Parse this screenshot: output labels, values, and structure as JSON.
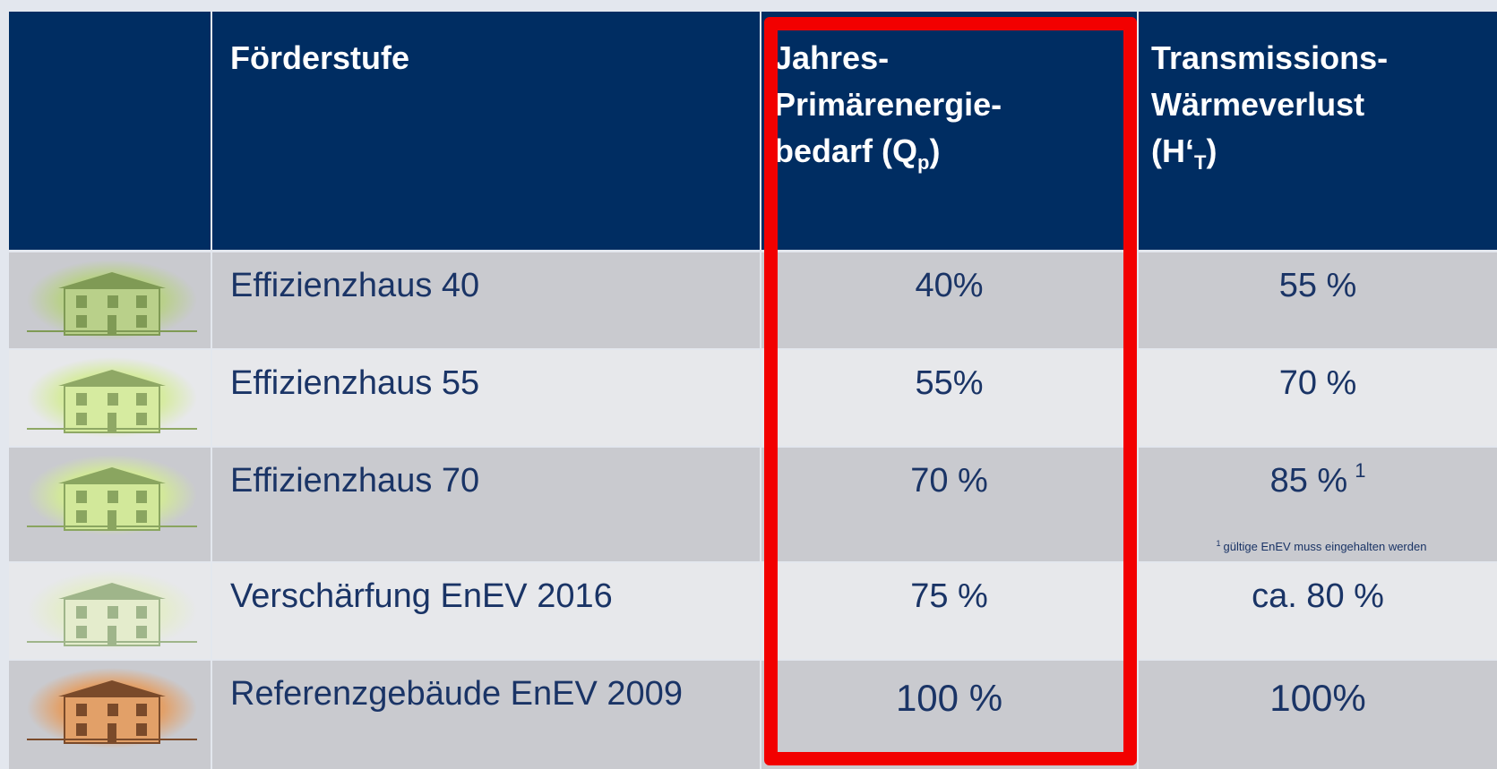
{
  "table": {
    "header": [
      {
        "lines": [
          "Förderstufe"
        ]
      },
      {
        "lines": [
          "Jahres-",
          "Primärenergie-",
          "bedarf (Q"
        ],
        "sub": "p",
        "after": ")"
      },
      {
        "lines": [
          "Transmissions-",
          "Wärmeverlust",
          "(H‘"
        ],
        "sub": "T",
        "after": ")"
      }
    ],
    "rows": [
      {
        "label": "Effizienzhaus 40",
        "qp": "40%",
        "ht": "55 %"
      },
      {
        "label": "Effizienzhaus 55",
        "qp": "55%",
        "ht": "70 %"
      },
      {
        "label": "Effizienzhaus 70",
        "qp": "70 %",
        "ht": "85 %",
        "ht_mark": "1"
      },
      {
        "label": "Verschärfung EnEV 2016",
        "qp": "75 %",
        "ht": "ca. 80 %"
      },
      {
        "label": "Referenzgebäude EnEV 2009",
        "qp": "100 %",
        "ht": "100%"
      }
    ],
    "footnote": {
      "mark": "1",
      "text": "gültige EnEV muss eingehalten werden"
    }
  }
}
